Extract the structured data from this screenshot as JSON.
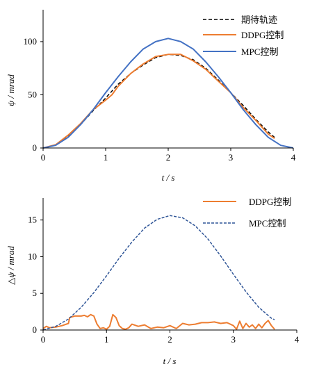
{
  "colors": {
    "axis": "#000000",
    "reference": "#000000",
    "ddpg": "#ED7D31",
    "mpc": "#4472C4",
    "mpc_error": "#2F5597"
  },
  "chart_data": [
    {
      "type": "line",
      "xlabel": "t / s",
      "ylabel": "ψ / mrad",
      "xlim": [
        0,
        4
      ],
      "ylim": [
        0,
        130
      ],
      "xticks": [
        0,
        1,
        2,
        3,
        4
      ],
      "yticks": [
        0,
        50,
        100
      ],
      "grid": false,
      "legend_position": "top-right",
      "series": [
        {
          "name": "期待轨迹",
          "style": "dashed",
          "x": [
            0,
            0.2,
            0.4,
            0.6,
            0.8,
            1.0,
            1.2,
            1.4,
            1.6,
            1.8,
            2.0,
            2.2,
            2.4,
            2.6,
            2.8,
            3.0,
            3.2,
            3.4,
            3.6,
            3.7
          ],
          "values": [
            0,
            3,
            11,
            22,
            35,
            47,
            60,
            70,
            78,
            85,
            88,
            87,
            83,
            75,
            64,
            52,
            40,
            27,
            15,
            10
          ]
        },
        {
          "name": "DDPG控制",
          "style": "solid",
          "x": [
            0,
            0.2,
            0.4,
            0.6,
            0.8,
            1.0,
            1.1,
            1.2,
            1.4,
            1.6,
            1.8,
            2.0,
            2.2,
            2.4,
            2.6,
            2.8,
            3.0,
            3.2,
            3.4,
            3.6,
            3.7
          ],
          "values": [
            0,
            3,
            12,
            23,
            36,
            45,
            50,
            58,
            70,
            79,
            86,
            88,
            88,
            82,
            74,
            63,
            52,
            38,
            26,
            13,
            9
          ]
        },
        {
          "name": "MPC控制",
          "style": "solid",
          "x": [
            0,
            0.2,
            0.4,
            0.6,
            0.8,
            1.0,
            1.2,
            1.4,
            1.6,
            1.8,
            2.0,
            2.2,
            2.4,
            2.6,
            2.8,
            3.0,
            3.2,
            3.4,
            3.6,
            3.8,
            4.0
          ],
          "values": [
            0,
            2.5,
            10,
            22,
            36,
            52,
            67,
            81,
            93,
            100,
            103,
            100,
            93,
            81,
            67,
            52,
            36,
            22,
            10,
            2.5,
            0
          ]
        }
      ]
    },
    {
      "type": "line",
      "xlabel": "t / s",
      "ylabel": "△ψ / mrad",
      "xlim": [
        0,
        4
      ],
      "ylim": [
        0,
        18
      ],
      "xticks": [
        0,
        1,
        2,
        3,
        4
      ],
      "yticks": [
        0,
        5,
        10,
        15
      ],
      "grid": false,
      "legend_position": "top-right",
      "series": [
        {
          "name": "DDPG控制",
          "style": "solid",
          "x": [
            0,
            0.05,
            0.1,
            0.2,
            0.3,
            0.4,
            0.42,
            0.5,
            0.6,
            0.65,
            0.7,
            0.75,
            0.8,
            0.85,
            0.9,
            0.95,
            1.0,
            1.05,
            1.1,
            1.15,
            1.2,
            1.25,
            1.3,
            1.35,
            1.4,
            1.5,
            1.6,
            1.7,
            1.8,
            1.9,
            2.0,
            2.1,
            2.2,
            2.3,
            2.4,
            2.5,
            2.6,
            2.7,
            2.8,
            2.9,
            3.0,
            3.05,
            3.1,
            3.15,
            3.2,
            3.25,
            3.3,
            3.35,
            3.4,
            3.45,
            3.5,
            3.55,
            3.6,
            3.65
          ],
          "values": [
            0.2,
            0.5,
            0.3,
            0.4,
            0.6,
            0.9,
            1.7,
            1.9,
            1.9,
            2.0,
            1.8,
            2.1,
            1.9,
            0.8,
            0.2,
            0.3,
            0.1,
            0.5,
            2.1,
            1.7,
            0.6,
            0.2,
            0.1,
            0.3,
            0.8,
            0.5,
            0.7,
            0.2,
            0.4,
            0.3,
            0.6,
            0.2,
            0.9,
            0.7,
            0.8,
            1.0,
            1.0,
            1.1,
            0.9,
            1.0,
            0.6,
            0.1,
            1.2,
            0.2,
            0.9,
            0.4,
            0.7,
            0.2,
            0.8,
            0.3,
            0.9,
            1.3,
            0.6,
            0.1
          ]
        },
        {
          "name": "MPC控制",
          "style": "dashed",
          "x": [
            0,
            0.2,
            0.4,
            0.6,
            0.8,
            1.0,
            1.2,
            1.4,
            1.6,
            1.8,
            2.0,
            2.2,
            2.4,
            2.6,
            2.8,
            3.0,
            3.2,
            3.4,
            3.6,
            3.65
          ],
          "values": [
            0,
            0.5,
            1.5,
            3.1,
            5.1,
            7.4,
            9.8,
            12.0,
            13.9,
            15.1,
            15.6,
            15.3,
            14.2,
            12.4,
            10.1,
            7.6,
            5.2,
            3.1,
            1.6,
            1.4
          ]
        }
      ]
    }
  ]
}
